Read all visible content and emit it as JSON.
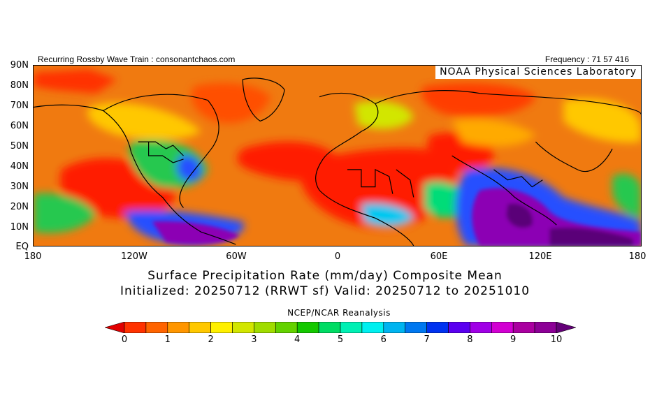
{
  "header": {
    "left": "Recurring Rossby Wave Train : consonantchaos.com",
    "right": "Frequency : 71 57 416"
  },
  "map": {
    "overlay_label": "NOAA Physical Sciences Laboratory",
    "lat_labels": [
      "90N",
      "80N",
      "70N",
      "60N",
      "50N",
      "40N",
      "30N",
      "20N",
      "10N",
      "EQ"
    ],
    "lon_labels": [
      "180",
      "120W",
      "60W",
      "0",
      "60E",
      "120E",
      "180"
    ],
    "background_color": "#f07a10",
    "field_colors": {
      "dry": "#ff1e00",
      "orange": "#ff6400",
      "light": "#ffaa00",
      "yellow": "#ffdc00",
      "green": "#28c850",
      "cyan": "#00d0e0",
      "blue": "#2850ff",
      "purple": "#8c00b4",
      "violet": "#5a0078"
    }
  },
  "titles": {
    "line1": "Surface Precipitation Rate (mm/day) Composite Mean",
    "line2": "Initialized: 20250712 (RRWT sf) Valid: 20250712 to 20251010"
  },
  "colorbar": {
    "source": "NCEP/NCAR Reanalysis",
    "min": 0,
    "max": 10,
    "tick_labels": [
      "0",
      "1",
      "2",
      "3",
      "4",
      "5",
      "6",
      "7",
      "8",
      "9",
      "10"
    ],
    "colors": [
      "#e10000",
      "#ff3200",
      "#ff6400",
      "#ff9600",
      "#ffc800",
      "#fff000",
      "#d2e600",
      "#a0dc00",
      "#64d200",
      "#14c800",
      "#00dc64",
      "#00f0b4",
      "#00f0f0",
      "#00b4f0",
      "#0078f0",
      "#0032f0",
      "#5a00f0",
      "#a000e6",
      "#d200d2",
      "#aa00a0",
      "#8c0096",
      "#640078"
    ]
  }
}
